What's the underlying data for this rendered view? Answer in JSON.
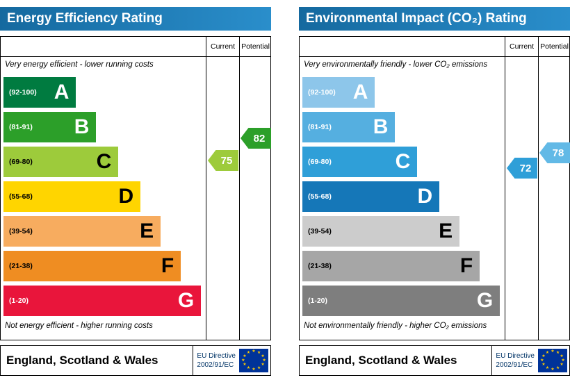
{
  "labels": {
    "current": "Current",
    "potential": "Potential"
  },
  "chart_data": [
    {
      "type": "bar",
      "title": "Energy Efficiency Rating",
      "top_note": "Very energy efficient - lower running costs",
      "bottom_note": "Not energy efficient - higher running costs",
      "current": {
        "value": 75,
        "color": "#9dcb3b"
      },
      "potential": {
        "value": 82,
        "color": "#2c9f29"
      },
      "scale": [
        {
          "letter": "A",
          "range_label": "(92-100)",
          "low": 92,
          "high": 100,
          "color": "#007b40",
          "text_color": "#ffffff",
          "width_pct": 36
        },
        {
          "letter": "B",
          "range_label": "(81-91)",
          "low": 81,
          "high": 91,
          "color": "#2c9f29",
          "text_color": "#ffffff",
          "width_pct": 46
        },
        {
          "letter": "C",
          "range_label": "(69-80)",
          "low": 69,
          "high": 80,
          "color": "#9dcb3b",
          "text_color": "#000000",
          "width_pct": 57
        },
        {
          "letter": "D",
          "range_label": "(55-68)",
          "low": 55,
          "high": 68,
          "color": "#ffd500",
          "text_color": "#000000",
          "width_pct": 68
        },
        {
          "letter": "E",
          "range_label": "(39-54)",
          "low": 39,
          "high": 54,
          "color": "#f7ac5f",
          "text_color": "#000000",
          "width_pct": 78
        },
        {
          "letter": "F",
          "range_label": "(21-38)",
          "low": 21,
          "high": 38,
          "color": "#ef8d22",
          "text_color": "#000000",
          "width_pct": 88
        },
        {
          "letter": "G",
          "range_label": "(1-20)",
          "low": 1,
          "high": 20,
          "color": "#e9153b",
          "text_color": "#ffffff",
          "width_pct": 98
        }
      ],
      "footer": {
        "region": "England, Scotland & Wales",
        "directive_line1": "EU Directive",
        "directive_line2": "2002/91/EC"
      }
    },
    {
      "type": "bar",
      "title": "Environmental Impact (CO₂) Rating",
      "top_note": "Very environmentally friendly - lower CO₂ emissions",
      "bottom_note": "Not environmentally friendly - higher CO₂ emissions",
      "current": {
        "value": 72,
        "color": "#2f9fd8"
      },
      "potential": {
        "value": 78,
        "color": "#62b9e6"
      },
      "scale": [
        {
          "letter": "A",
          "range_label": "(92-100)",
          "low": 92,
          "high": 100,
          "color": "#8dc6ea",
          "text_color": "#ffffff",
          "width_pct": 36
        },
        {
          "letter": "B",
          "range_label": "(81-91)",
          "low": 81,
          "high": 91,
          "color": "#55afe0",
          "text_color": "#ffffff",
          "width_pct": 46
        },
        {
          "letter": "C",
          "range_label": "(69-80)",
          "low": 69,
          "high": 80,
          "color": "#2f9fd8",
          "text_color": "#ffffff",
          "width_pct": 57
        },
        {
          "letter": "D",
          "range_label": "(55-68)",
          "low": 55,
          "high": 68,
          "color": "#1577b8",
          "text_color": "#ffffff",
          "width_pct": 68
        },
        {
          "letter": "E",
          "range_label": "(39-54)",
          "low": 39,
          "high": 54,
          "color": "#cccccc",
          "text_color": "#000000",
          "width_pct": 78
        },
        {
          "letter": "F",
          "range_label": "(21-38)",
          "low": 21,
          "high": 38,
          "color": "#a6a6a6",
          "text_color": "#000000",
          "width_pct": 88
        },
        {
          "letter": "G",
          "range_label": "(1-20)",
          "low": 1,
          "high": 20,
          "color": "#7e7e7e",
          "text_color": "#ffffff",
          "width_pct": 98
        }
      ],
      "footer": {
        "region": "England, Scotland & Wales",
        "directive_line1": "EU Directive",
        "directive_line2": "2002/91/EC"
      }
    }
  ]
}
